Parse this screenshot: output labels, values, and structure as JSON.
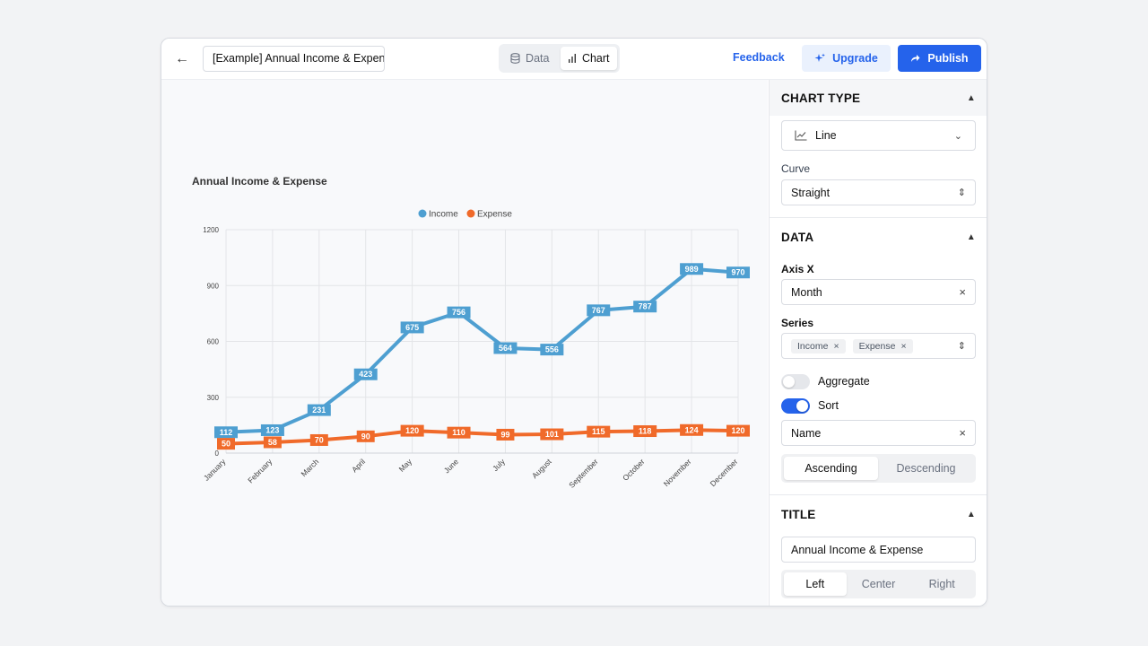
{
  "header": {
    "back_icon": "arrow-left-icon",
    "title_value": "[Example] Annual Income & Expen",
    "view_tabs": [
      {
        "label": "Data",
        "icon": "database-icon",
        "active": false
      },
      {
        "label": "Chart",
        "icon": "bar-chart-icon",
        "active": true
      }
    ],
    "feedback_label": "Feedback",
    "upgrade_label": "Upgrade",
    "publish_label": "Publish"
  },
  "colors": {
    "accent": "#2563eb",
    "income": "#4e9fd1",
    "expense": "#f06a2a"
  },
  "chart_data": {
    "type": "line",
    "title": "Annual Income & Expense",
    "categories": [
      "January",
      "February",
      "March",
      "April",
      "May",
      "June",
      "July",
      "August",
      "September",
      "October",
      "November",
      "December"
    ],
    "series": [
      {
        "name": "Income",
        "color": "#4e9fd1",
        "values": [
          112,
          123,
          231,
          423,
          675,
          756,
          564,
          556,
          767,
          787,
          989,
          970
        ]
      },
      {
        "name": "Expense",
        "color": "#f06a2a",
        "values": [
          50,
          58,
          70,
          90,
          120,
          110,
          99,
          101,
          115,
          118,
          124,
          120
        ]
      }
    ],
    "y_ticks": [
      "0",
      "300",
      "600",
      "900",
      "1200"
    ],
    "ylim": [
      0,
      1200
    ],
    "grid": true,
    "legend": "top-center",
    "xlabel": "",
    "ylabel": ""
  },
  "panel": {
    "chart_type": {
      "heading": "CHART TYPE",
      "type_value": "Line",
      "curve_label": "Curve",
      "curve_value": "Straight"
    },
    "data": {
      "heading": "DATA",
      "axis_x_label": "Axis X",
      "axis_x_value": "Month",
      "series_label": "Series",
      "series_chips": [
        "Income",
        "Expense"
      ],
      "aggregate_label": "Aggregate",
      "aggregate_on": false,
      "sort_label": "Sort",
      "sort_on": true,
      "sort_by_value": "Name",
      "order_options": [
        "Ascending",
        "Descending"
      ],
      "order_selected": "Ascending"
    },
    "title": {
      "heading": "TITLE",
      "title_value": "Annual Income & Expense",
      "align_options": [
        "Left",
        "Center",
        "Right"
      ],
      "align_selected": "Left"
    }
  }
}
